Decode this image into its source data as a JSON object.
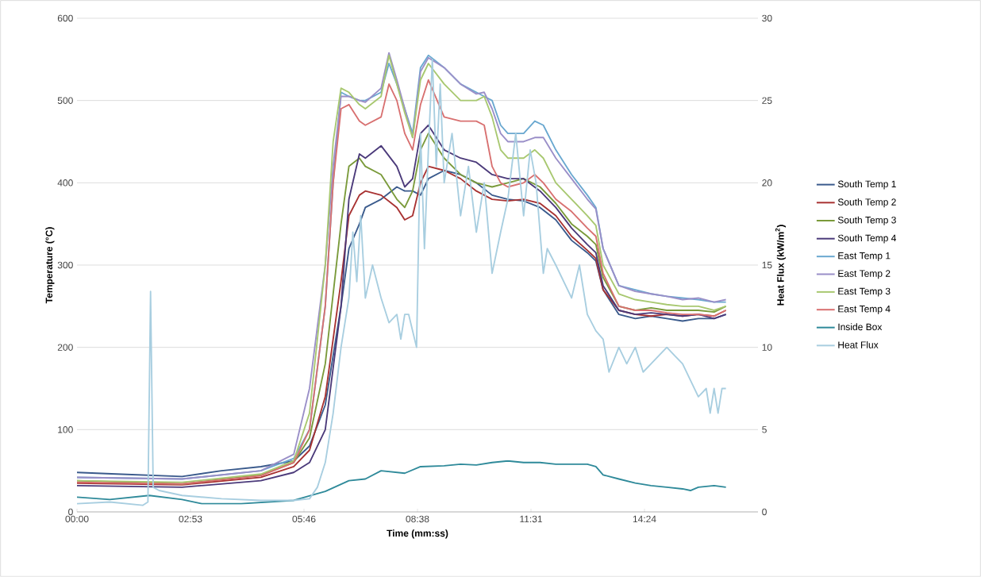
{
  "chart_data": {
    "type": "line",
    "xlabel": "Time (mm:ss)",
    "ylabel": "Temperature (°C)",
    "y2label": "Heat Flux (kW/m$^{2}$)",
    "xlim": [
      0,
      1036.8
    ],
    "xticks": [
      {
        "value": 0,
        "label": "00:00"
      },
      {
        "value": 172.8,
        "label": "02:53"
      },
      {
        "value": 345.6,
        "label": "05:46"
      },
      {
        "value": 518.4,
        "label": "08:38"
      },
      {
        "value": 691.2,
        "label": "11:31"
      },
      {
        "value": 864,
        "label": "14:24"
      }
    ],
    "ylim": [
      0,
      600
    ],
    "yticks": [
      0,
      100,
      200,
      300,
      400,
      500,
      600
    ],
    "y2lim": [
      0,
      30
    ],
    "y2ticks": [
      0,
      5,
      10,
      15,
      20,
      25,
      30
    ],
    "grid": "y",
    "legend": "right",
    "marker": "none",
    "line_style": "solid",
    "series": [
      {
        "name": "South Temp 1",
        "color": "#3a5a8c",
        "x": [
          0,
          60,
          160,
          220,
          280,
          330,
          354,
          378,
          402,
          414,
          430,
          439,
          463,
          487,
          499,
          511,
          523,
          535,
          559,
          584,
          608,
          632,
          656,
          680,
          705,
          729,
          753,
          777,
          790,
          801,
          825,
          850,
          874,
          898,
          922,
          946,
          970,
          988
        ],
        "values": [
          48,
          46,
          43,
          50,
          55,
          62,
          80,
          130,
          250,
          320,
          350,
          370,
          380,
          395,
          390,
          390,
          385,
          405,
          415,
          410,
          400,
          385,
          380,
          378,
          370,
          355,
          330,
          315,
          305,
          270,
          240,
          235,
          238,
          235,
          232,
          235,
          235,
          240
        ]
      },
      {
        "name": "South Temp 2",
        "color": "#a83232",
        "x": [
          0,
          160,
          280,
          330,
          354,
          378,
          402,
          414,
          430,
          439,
          463,
          487,
          499,
          511,
          523,
          535,
          559,
          584,
          608,
          632,
          656,
          680,
          705,
          729,
          753,
          777,
          790,
          801,
          825,
          850,
          874,
          898,
          922,
          946,
          970,
          988
        ],
        "values": [
          35,
          33,
          42,
          55,
          75,
          140,
          280,
          360,
          385,
          390,
          385,
          370,
          355,
          360,
          400,
          420,
          415,
          405,
          390,
          380,
          378,
          380,
          375,
          360,
          335,
          318,
          308,
          270,
          245,
          240,
          238,
          240,
          238,
          240,
          238,
          245
        ]
      },
      {
        "name": "South Temp 3",
        "color": "#7a9a3a",
        "x": [
          0,
          160,
          280,
          330,
          354,
          378,
          402,
          414,
          430,
          439,
          463,
          487,
          499,
          511,
          523,
          535,
          559,
          584,
          608,
          632,
          656,
          680,
          705,
          729,
          753,
          777,
          790,
          801,
          825,
          850,
          874,
          898,
          922,
          946,
          970,
          988
        ],
        "values": [
          38,
          34,
          45,
          60,
          90,
          180,
          350,
          420,
          430,
          420,
          410,
          380,
          370,
          390,
          440,
          460,
          430,
          410,
          400,
          395,
          400,
          405,
          395,
          375,
          350,
          335,
          325,
          285,
          250,
          245,
          248,
          245,
          245,
          245,
          243,
          250
        ]
      },
      {
        "name": "South Temp 4",
        "color": "#4b3a7a",
        "x": [
          0,
          160,
          280,
          330,
          354,
          378,
          402,
          414,
          430,
          439,
          463,
          487,
          499,
          511,
          523,
          535,
          559,
          584,
          608,
          632,
          656,
          680,
          705,
          729,
          753,
          777,
          790,
          801,
          825,
          850,
          874,
          898,
          922,
          946,
          970,
          988
        ],
        "values": [
          32,
          30,
          38,
          48,
          60,
          100,
          250,
          380,
          435,
          430,
          445,
          420,
          395,
          405,
          460,
          470,
          440,
          430,
          425,
          410,
          405,
          405,
          390,
          370,
          345,
          325,
          315,
          275,
          245,
          240,
          242,
          240,
          238,
          240,
          235,
          240
        ]
      },
      {
        "name": "East Temp 1",
        "color": "#6aa8d0",
        "x": [
          0,
          160,
          280,
          330,
          354,
          378,
          390,
          402,
          414,
          430,
          439,
          463,
          475,
          487,
          499,
          511,
          523,
          535,
          559,
          584,
          608,
          620,
          632,
          645,
          656,
          680,
          697,
          710,
          729,
          753,
          777,
          790,
          801,
          825,
          850,
          874,
          898,
          922,
          946,
          970,
          988
        ],
        "values": [
          42,
          40,
          50,
          65,
          100,
          250,
          400,
          510,
          505,
          500,
          500,
          510,
          545,
          520,
          490,
          460,
          540,
          555,
          540,
          520,
          510,
          505,
          500,
          470,
          460,
          460,
          475,
          470,
          440,
          410,
          385,
          370,
          320,
          275,
          270,
          265,
          262,
          260,
          258,
          255,
          255
        ]
      },
      {
        "name": "East Temp 2",
        "color": "#9a8fc8",
        "x": [
          0,
          160,
          280,
          330,
          354,
          378,
          390,
          402,
          414,
          430,
          439,
          463,
          475,
          487,
          499,
          511,
          523,
          535,
          559,
          584,
          608,
          620,
          632,
          645,
          656,
          680,
          697,
          710,
          729,
          753,
          777,
          790,
          801,
          825,
          850,
          874,
          898,
          922,
          946,
          970,
          988
        ],
        "values": [
          42,
          40,
          50,
          70,
          150,
          300,
          420,
          505,
          505,
          500,
          498,
          515,
          558,
          525,
          490,
          455,
          535,
          552,
          540,
          520,
          508,
          510,
          490,
          460,
          450,
          450,
          455,
          455,
          430,
          405,
          380,
          368,
          320,
          275,
          268,
          265,
          262,
          258,
          260,
          255,
          258
        ]
      },
      {
        "name": "East Temp 3",
        "color": "#a8c870",
        "x": [
          0,
          160,
          280,
          330,
          354,
          378,
          390,
          402,
          414,
          430,
          439,
          463,
          475,
          487,
          499,
          511,
          523,
          535,
          559,
          584,
          608,
          620,
          632,
          645,
          656,
          680,
          697,
          710,
          729,
          753,
          777,
          790,
          801,
          825,
          850,
          874,
          898,
          922,
          946,
          970,
          988
        ],
        "values": [
          38,
          36,
          46,
          62,
          120,
          300,
          450,
          515,
          510,
          495,
          490,
          505,
          555,
          520,
          485,
          455,
          525,
          545,
          520,
          500,
          500,
          505,
          480,
          440,
          430,
          430,
          440,
          430,
          400,
          380,
          360,
          348,
          300,
          265,
          258,
          255,
          252,
          250,
          250,
          245,
          250
        ]
      },
      {
        "name": "East Temp 4",
        "color": "#d87070",
        "x": [
          0,
          160,
          280,
          330,
          354,
          378,
          390,
          402,
          414,
          430,
          439,
          463,
          475,
          487,
          499,
          511,
          523,
          535,
          559,
          584,
          608,
          620,
          632,
          645,
          656,
          680,
          697,
          710,
          729,
          753,
          777,
          790,
          801,
          825,
          850,
          874,
          898,
          922,
          946,
          970,
          988
        ],
        "values": [
          36,
          34,
          44,
          60,
          100,
          250,
          400,
          490,
          495,
          475,
          470,
          480,
          520,
          500,
          460,
          440,
          495,
          525,
          480,
          475,
          475,
          470,
          420,
          400,
          395,
          400,
          410,
          400,
          380,
          365,
          345,
          335,
          290,
          250,
          245,
          245,
          242,
          240,
          240,
          238,
          245
        ]
      },
      {
        "name": "Inside Box",
        "color": "#2f8a9a",
        "x": [
          0,
          50,
          110,
          160,
          190,
          250,
          330,
          378,
          414,
          439,
          463,
          499,
          523,
          559,
          584,
          608,
          632,
          656,
          680,
          705,
          729,
          753,
          777,
          790,
          801,
          825,
          850,
          874,
          898,
          922,
          934,
          946,
          970,
          988
        ],
        "values": [
          18,
          15,
          20,
          15,
          10,
          10,
          14,
          25,
          38,
          40,
          50,
          47,
          55,
          56,
          58,
          57,
          60,
          62,
          60,
          60,
          58,
          58,
          58,
          55,
          45,
          40,
          35,
          32,
          30,
          28,
          26,
          30,
          32,
          30
        ]
      },
      {
        "name": "Heat Flux",
        "color": "#a8cee0",
        "axis": "y2",
        "x": [
          0,
          50,
          100,
          108,
          112,
          116,
          125,
          160,
          220,
          280,
          330,
          354,
          366,
          378,
          390,
          402,
          414,
          420,
          426,
          432,
          439,
          450,
          463,
          475,
          487,
          493,
          499,
          505,
          517,
          523,
          529,
          535,
          541,
          547,
          553,
          559,
          571,
          584,
          596,
          608,
          620,
          632,
          645,
          656,
          668,
          680,
          690,
          699,
          710,
          716,
          729,
          741,
          753,
          765,
          777,
          790,
          801,
          810,
          825,
          837,
          850,
          862,
          874,
          898,
          910,
          922,
          946,
          958,
          964,
          970,
          976,
          982,
          988
        ],
        "values": [
          0.5,
          0.6,
          0.4,
          0.6,
          13.4,
          1.5,
          1.3,
          1.0,
          0.8,
          0.7,
          0.7,
          0.8,
          1.5,
          3,
          6,
          10,
          13,
          17,
          14,
          18,
          13,
          15,
          13,
          11.5,
          12,
          10.5,
          12,
          12,
          10,
          23,
          16,
          22,
          27.5,
          21,
          26,
          20,
          23,
          18,
          21,
          17,
          20,
          14.5,
          17,
          19,
          23,
          18,
          22,
          20,
          14.5,
          16,
          15,
          14,
          13,
          15,
          12,
          11,
          10.5,
          8.5,
          10,
          9,
          10,
          8.5,
          9,
          10,
          9.5,
          9,
          7,
          7.5,
          6,
          7.5,
          6,
          7.5,
          7.5
        ]
      }
    ]
  }
}
